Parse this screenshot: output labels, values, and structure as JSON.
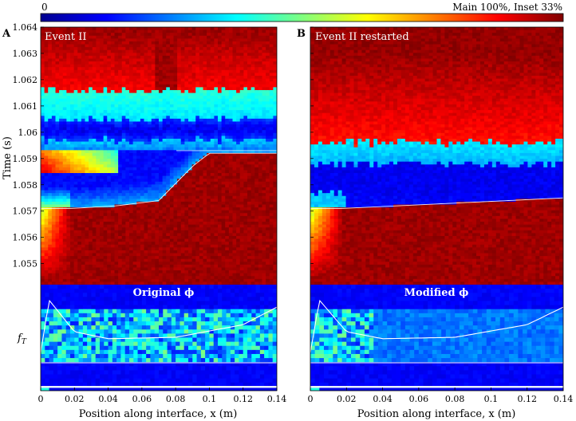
{
  "colorbar": {
    "min_label": "0",
    "max_label": "Main 100%, Inset 33%"
  },
  "chart_data": [
    {
      "type": "heatmap",
      "panel": "A",
      "title": "Event II",
      "inset_title": "Original ϕ",
      "xlabel": "Position along interface, x (m)",
      "ylabel": "Time (s)",
      "inset_ylabel": "f_T",
      "xlim": [
        0,
        0.14
      ],
      "ylim": [
        1.0542,
        1.064
      ],
      "xticks": [
        "0",
        "0.02",
        "0.04",
        "0.06",
        "0.08",
        "0.1",
        "0.12",
        "0.14"
      ],
      "yticks": [
        "1.055",
        "1.056",
        "1.057",
        "1.058",
        "1.059",
        "1.06",
        "1.061",
        "1.062",
        "1.063",
        "1.064"
      ],
      "rupture_front": {
        "x": [
          0,
          0.018,
          0.045,
          0.07,
          0.09,
          0.1,
          0.14
        ],
        "t": [
          1.0571,
          1.0571,
          1.0572,
          1.0574,
          1.0587,
          1.0592,
          1.0592
        ]
      },
      "arrest_front": {
        "x": [
          0,
          0.14
        ],
        "t": [
          1.0593,
          1.0593
        ]
      },
      "blue_band_time": [
        1.0597,
        1.0605
      ],
      "inset_curve": {
        "x": [
          0.0,
          0.005,
          0.01,
          0.02,
          0.04,
          0.08,
          0.12,
          0.14
        ],
        "f": [
          0.2,
          0.95,
          0.8,
          0.5,
          0.4,
          0.42,
          0.6,
          0.85
        ]
      }
    },
    {
      "type": "heatmap",
      "panel": "B",
      "title": "Event II restarted",
      "inset_title": "Modified ϕ",
      "xlabel": "Position along interface, x (m)",
      "xlim": [
        0,
        0.14
      ],
      "ylim": [
        1.0542,
        1.064
      ],
      "xticks": [
        "0",
        "0.02",
        "0.04",
        "0.06",
        "0.08",
        "0.1",
        "0.12",
        "0.14"
      ],
      "rupture_front": {
        "x": [
          0,
          0.018,
          0.14
        ],
        "t": [
          1.0571,
          1.0571,
          1.0575
        ]
      },
      "blue_band_time": [
        1.0577,
        1.0588
      ],
      "inset_curve": {
        "x": [
          0.0,
          0.005,
          0.01,
          0.02,
          0.04,
          0.08,
          0.12,
          0.14
        ],
        "f": [
          0.2,
          0.95,
          0.8,
          0.5,
          0.4,
          0.42,
          0.6,
          0.85
        ]
      }
    }
  ]
}
